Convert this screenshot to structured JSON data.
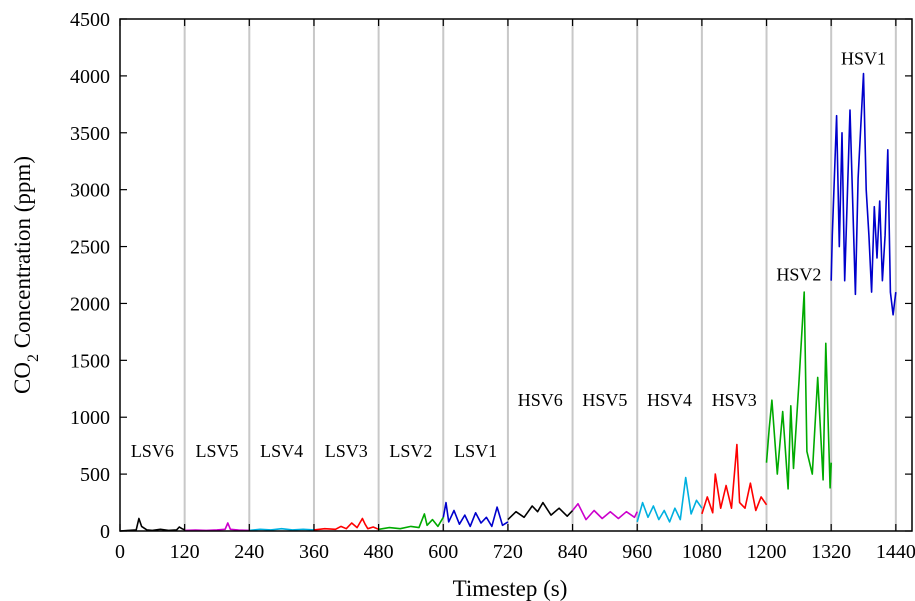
{
  "chart_data": {
    "type": "line",
    "xlabel": "Timestep (s)",
    "ylabel": {
      "main": "CO",
      "sub": "2",
      "rest": " Concentration (ppm)"
    },
    "xlim": [
      0,
      1470
    ],
    "ylim": [
      0,
      4500
    ],
    "xticks": [
      0,
      120,
      240,
      360,
      480,
      600,
      720,
      840,
      960,
      1080,
      1200,
      1320,
      1440
    ],
    "yticks": [
      0,
      500,
      1000,
      1500,
      2000,
      2500,
      3000,
      3500,
      4000,
      4500
    ],
    "grid": "vertical",
    "segment_labels": [
      {
        "text": "LSV6",
        "x": 60,
        "y": 650
      },
      {
        "text": "LSV5",
        "x": 180,
        "y": 650
      },
      {
        "text": "LSV4",
        "x": 300,
        "y": 650
      },
      {
        "text": "LSV3",
        "x": 420,
        "y": 650
      },
      {
        "text": "LSV2",
        "x": 540,
        "y": 650
      },
      {
        "text": "LSV1",
        "x": 660,
        "y": 650
      },
      {
        "text": "HSV6",
        "x": 780,
        "y": 1100
      },
      {
        "text": "HSV5",
        "x": 900,
        "y": 1100
      },
      {
        "text": "HSV4",
        "x": 1020,
        "y": 1100
      },
      {
        "text": "HSV3",
        "x": 1140,
        "y": 1100
      },
      {
        "text": "HSV2",
        "x": 1260,
        "y": 2200
      },
      {
        "text": "HSV1",
        "x": 1380,
        "y": 4100
      }
    ],
    "series": [
      {
        "color": "#000000",
        "x": [
          0,
          15,
          30,
          35,
          40,
          50,
          60,
          75,
          90,
          105,
          110,
          115,
          120
        ],
        "y": [
          0,
          5,
          10,
          110,
          40,
          10,
          5,
          15,
          5,
          10,
          35,
          20,
          10
        ]
      },
      {
        "color": "#cc00cc",
        "x": [
          120,
          140,
          160,
          180,
          195,
          200,
          205,
          220,
          240
        ],
        "y": [
          5,
          8,
          5,
          10,
          15,
          70,
          15,
          8,
          5
        ]
      },
      {
        "color": "#00b0e0",
        "x": [
          240,
          260,
          280,
          300,
          320,
          340,
          360
        ],
        "y": [
          5,
          15,
          10,
          20,
          10,
          15,
          10
        ]
      },
      {
        "color": "#ff0000",
        "x": [
          360,
          380,
          400,
          410,
          420,
          430,
          440,
          450,
          455,
          460,
          470,
          480
        ],
        "y": [
          10,
          20,
          15,
          40,
          20,
          70,
          30,
          110,
          60,
          20,
          35,
          15
        ]
      },
      {
        "color": "#00aa00",
        "x": [
          480,
          500,
          520,
          540,
          555,
          565,
          570,
          580,
          590,
          600
        ],
        "y": [
          15,
          30,
          20,
          40,
          30,
          150,
          50,
          100,
          40,
          120
        ]
      },
      {
        "color": "#0000cc",
        "x": [
          600,
          605,
          610,
          620,
          630,
          640,
          650,
          660,
          670,
          680,
          690,
          700,
          710,
          720
        ],
        "y": [
          120,
          250,
          80,
          180,
          60,
          140,
          40,
          160,
          70,
          120,
          40,
          210,
          50,
          80
        ]
      },
      {
        "color": "#000000",
        "x": [
          720,
          735,
          750,
          765,
          775,
          785,
          800,
          815,
          830,
          840
        ],
        "y": [
          100,
          170,
          120,
          220,
          170,
          250,
          140,
          200,
          130,
          180
        ]
      },
      {
        "color": "#cc00cc",
        "x": [
          840,
          850,
          865,
          880,
          895,
          910,
          925,
          940,
          955,
          960
        ],
        "y": [
          180,
          240,
          100,
          180,
          110,
          170,
          110,
          170,
          120,
          170
        ]
      },
      {
        "color": "#00b0e0",
        "x": [
          960,
          970,
          980,
          990,
          1000,
          1010,
          1020,
          1030,
          1040,
          1050,
          1060,
          1070,
          1080
        ],
        "y": [
          80,
          250,
          120,
          220,
          100,
          180,
          80,
          200,
          100,
          470,
          150,
          270,
          200
        ]
      },
      {
        "color": "#ff0000",
        "x": [
          1080,
          1090,
          1100,
          1105,
          1115,
          1125,
          1135,
          1145,
          1150,
          1160,
          1170,
          1180,
          1190,
          1200
        ],
        "y": [
          150,
          300,
          160,
          500,
          200,
          400,
          200,
          760,
          250,
          200,
          420,
          180,
          300,
          230
        ]
      },
      {
        "color": "#00aa00",
        "x": [
          1200,
          1205,
          1210,
          1220,
          1230,
          1240,
          1245,
          1250,
          1260,
          1270,
          1275,
          1285,
          1295,
          1305,
          1310,
          1318,
          1320
        ],
        "y": [
          600,
          900,
          1150,
          500,
          1050,
          370,
          1100,
          550,
          1300,
          2100,
          700,
          500,
          1350,
          450,
          1650,
          380,
          600
        ]
      },
      {
        "color": "#0000cc",
        "x": [
          1320,
          1322,
          1330,
          1335,
          1340,
          1345,
          1355,
          1365,
          1370,
          1380,
          1385,
          1390,
          1395,
          1400,
          1405,
          1410,
          1415,
          1420,
          1425,
          1430,
          1435,
          1440
        ],
        "y": [
          2200,
          2600,
          3650,
          2500,
          3500,
          2200,
          3700,
          2080,
          3100,
          4020,
          3000,
          2600,
          2100,
          2850,
          2400,
          2900,
          2200,
          2600,
          3350,
          2100,
          1900,
          2100
        ]
      }
    ]
  }
}
